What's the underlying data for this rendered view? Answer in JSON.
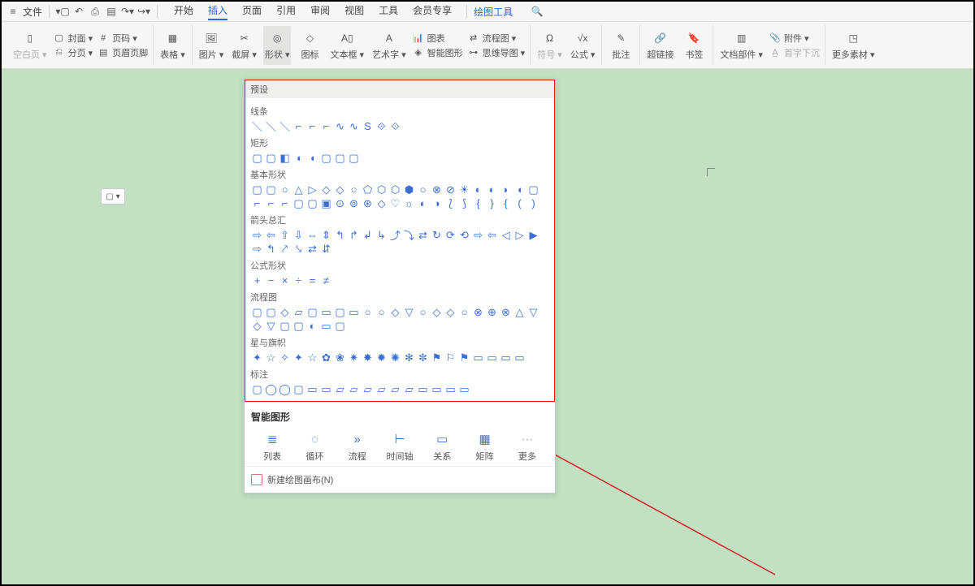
{
  "menubar": {
    "file_label": "文件",
    "tabs": [
      "开始",
      "插入",
      "页面",
      "引用",
      "审阅",
      "视图",
      "工具",
      "会员专享"
    ],
    "active_tab_index": 1,
    "extra_tool": "绘图工具"
  },
  "ribbon": {
    "g1": {
      "blank": "空白页 ▾",
      "cover": "封面 ▾",
      "page_num": "页码 ▾",
      "split": "分页 ▾",
      "header_footer": "页眉页脚"
    },
    "g2": {
      "table": "表格 ▾"
    },
    "g3": {
      "pic": "图片 ▾",
      "screenshot": "截屏 ▾",
      "shape": "形状 ▾",
      "icon": "图标",
      "textbox": "文本框 ▾",
      "wordart": "艺术字 ▾",
      "chart": "图表",
      "smartart": "智能图形",
      "flow": "流程图 ▾",
      "mindmap": "思维导图 ▾"
    },
    "g4": {
      "symbol": "符号 ▾",
      "formula": "公式 ▾"
    },
    "g5": {
      "comment": "批注"
    },
    "g6": {
      "hyperlink": "超链接",
      "bookmark": "书签"
    },
    "g7": {
      "docpart": "文档部件 ▾",
      "attach": "附件 ▾",
      "dropcap": "首字下沉"
    },
    "g8": {
      "more": "更多素材 ▾"
    }
  },
  "shapes_panel": {
    "header": "预设",
    "categories": [
      {
        "label": "线条",
        "count": 11
      },
      {
        "label": "矩形",
        "count": 8
      },
      {
        "label": "基本形状",
        "count": 42
      },
      {
        "label": "箭头总汇",
        "count": 27
      },
      {
        "label": "公式形状",
        "count": 6
      },
      {
        "label": "流程图",
        "count": 28
      },
      {
        "label": "星与旗帜",
        "count": 20
      },
      {
        "label": "标注",
        "count": 16
      }
    ],
    "smart_title": "智能图形",
    "smart_items": [
      {
        "label": "列表",
        "glyph": "≣"
      },
      {
        "label": "循环",
        "glyph": "◌"
      },
      {
        "label": "流程",
        "glyph": "»"
      },
      {
        "label": "时间轴",
        "glyph": "⊢"
      },
      {
        "label": "关系",
        "glyph": "▭"
      },
      {
        "label": "矩阵",
        "glyph": "▦"
      },
      {
        "label": "更多",
        "glyph": "⋯"
      }
    ],
    "footer": "新建绘图画布(N)"
  },
  "colors": {
    "accent": "#2b6cd1",
    "doc_bg": "#c3e0c3",
    "shape_stroke": "#3b6fd6",
    "annotation": "#d32020"
  }
}
